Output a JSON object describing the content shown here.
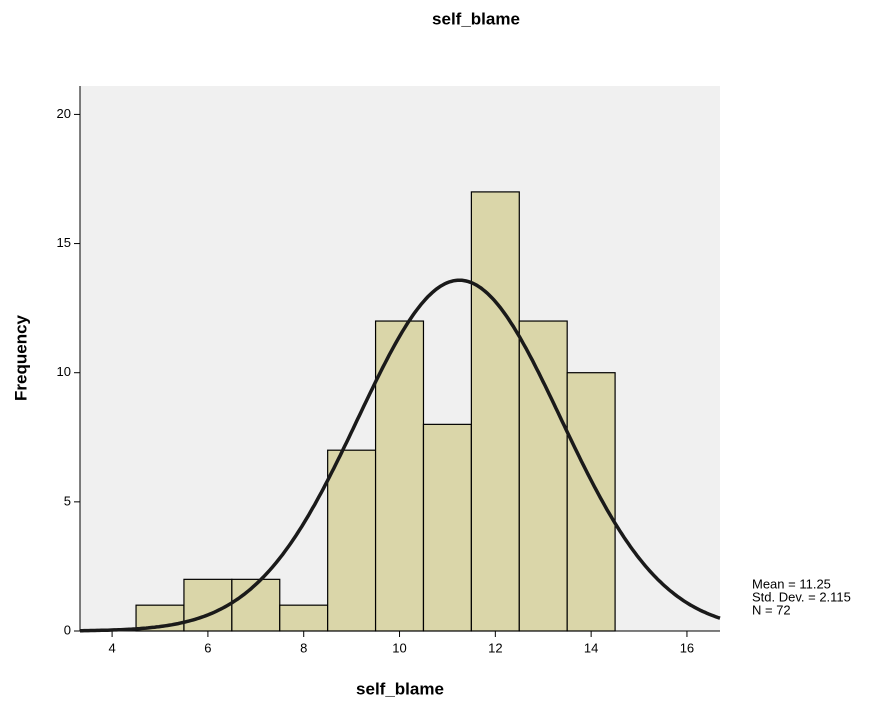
{
  "chart_data": {
    "type": "histogram",
    "title": "self_blame",
    "x_label": "self_blame",
    "y_label": "Frequency",
    "bins": [
      4.5,
      5.5,
      6.5,
      7.5,
      8.5,
      9.5,
      10.5,
      11.5,
      12.5,
      13.5,
      14.5
    ],
    "values": [
      1,
      2,
      2,
      1,
      7,
      12,
      8,
      17,
      12,
      10
    ],
    "color": "#dad6a9",
    "background": "#f0f0f0",
    "xlim": [
      3.33,
      16.69
    ],
    "xticks": [
      4,
      6,
      8,
      10,
      12,
      14,
      16
    ],
    "ylim": [
      0,
      21.1
    ],
    "yticks": [
      0,
      5,
      10,
      15,
      20
    ],
    "normal_curve": true,
    "stats": [
      {
        "value": 11.25,
        "label": "Mean = 11.25"
      },
      {
        "value": 2.115,
        "label": "Std. Dev. = 2.115"
      },
      {
        "value": 72,
        "label": "N = 72"
      }
    ]
  }
}
